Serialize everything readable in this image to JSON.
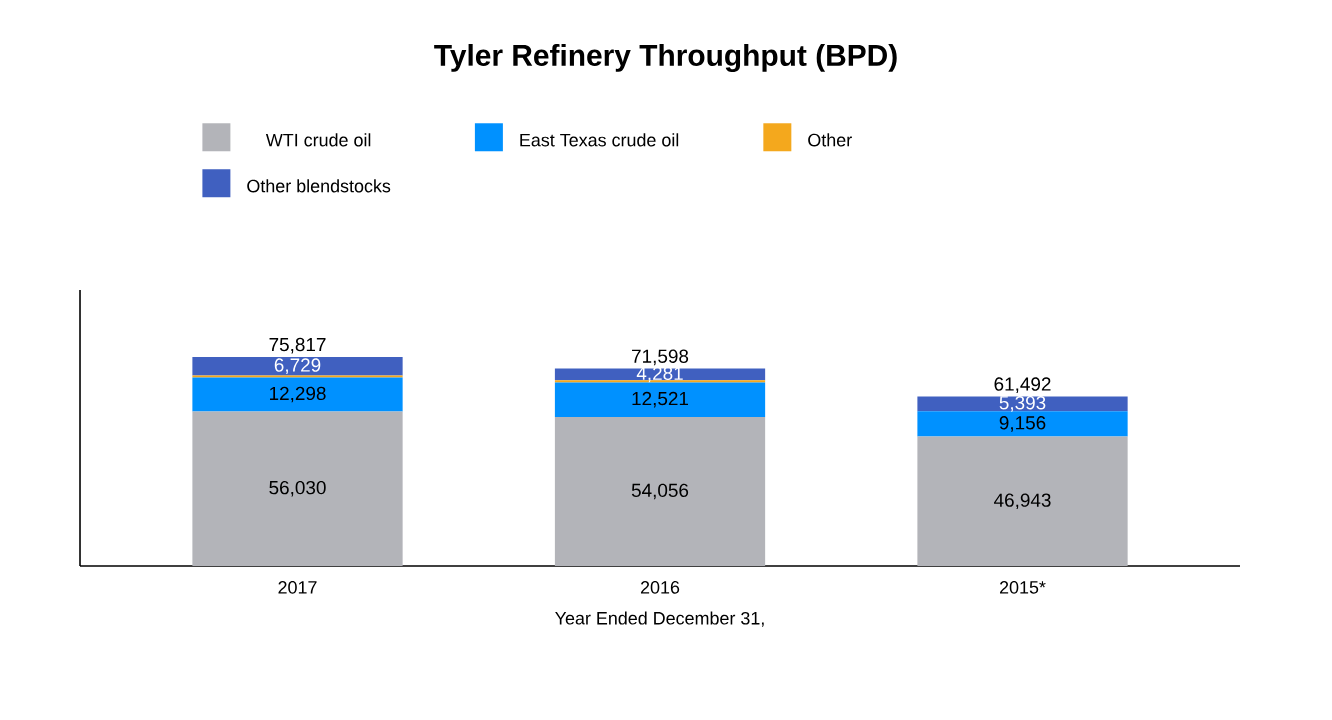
{
  "chart_data": {
    "type": "bar",
    "title": "Tyler Refinery Throughput (BPD)",
    "xlabel": "Year Ended December 31,",
    "categories": [
      "2017",
      "2016",
      "2015*"
    ],
    "stacked": true,
    "legend": "top",
    "series": [
      {
        "name": "WTI crude oil",
        "color": "#b3b4b9",
        "values": [
          56030,
          54056,
          46943
        ],
        "value_labels": [
          "56,030",
          "54,056",
          "46,943"
        ]
      },
      {
        "name": "East Texas crude oil",
        "color": "#0091ff",
        "values": [
          12298,
          12521,
          9156
        ],
        "value_labels": [
          "12,298",
          "12,521",
          "9,156"
        ]
      },
      {
        "name": "Other",
        "color": "#f4a81d",
        "values": [
          760,
          740,
          0
        ],
        "value_labels": [
          null,
          null,
          null
        ]
      },
      {
        "name": "Other blendstocks",
        "color": "#4060c0",
        "values": [
          6729,
          4281,
          5393
        ],
        "value_labels": [
          "6,729",
          "4,281",
          "5,393"
        ]
      }
    ],
    "totals": [
      "75,817",
      "71,598",
      "61,492"
    ]
  }
}
